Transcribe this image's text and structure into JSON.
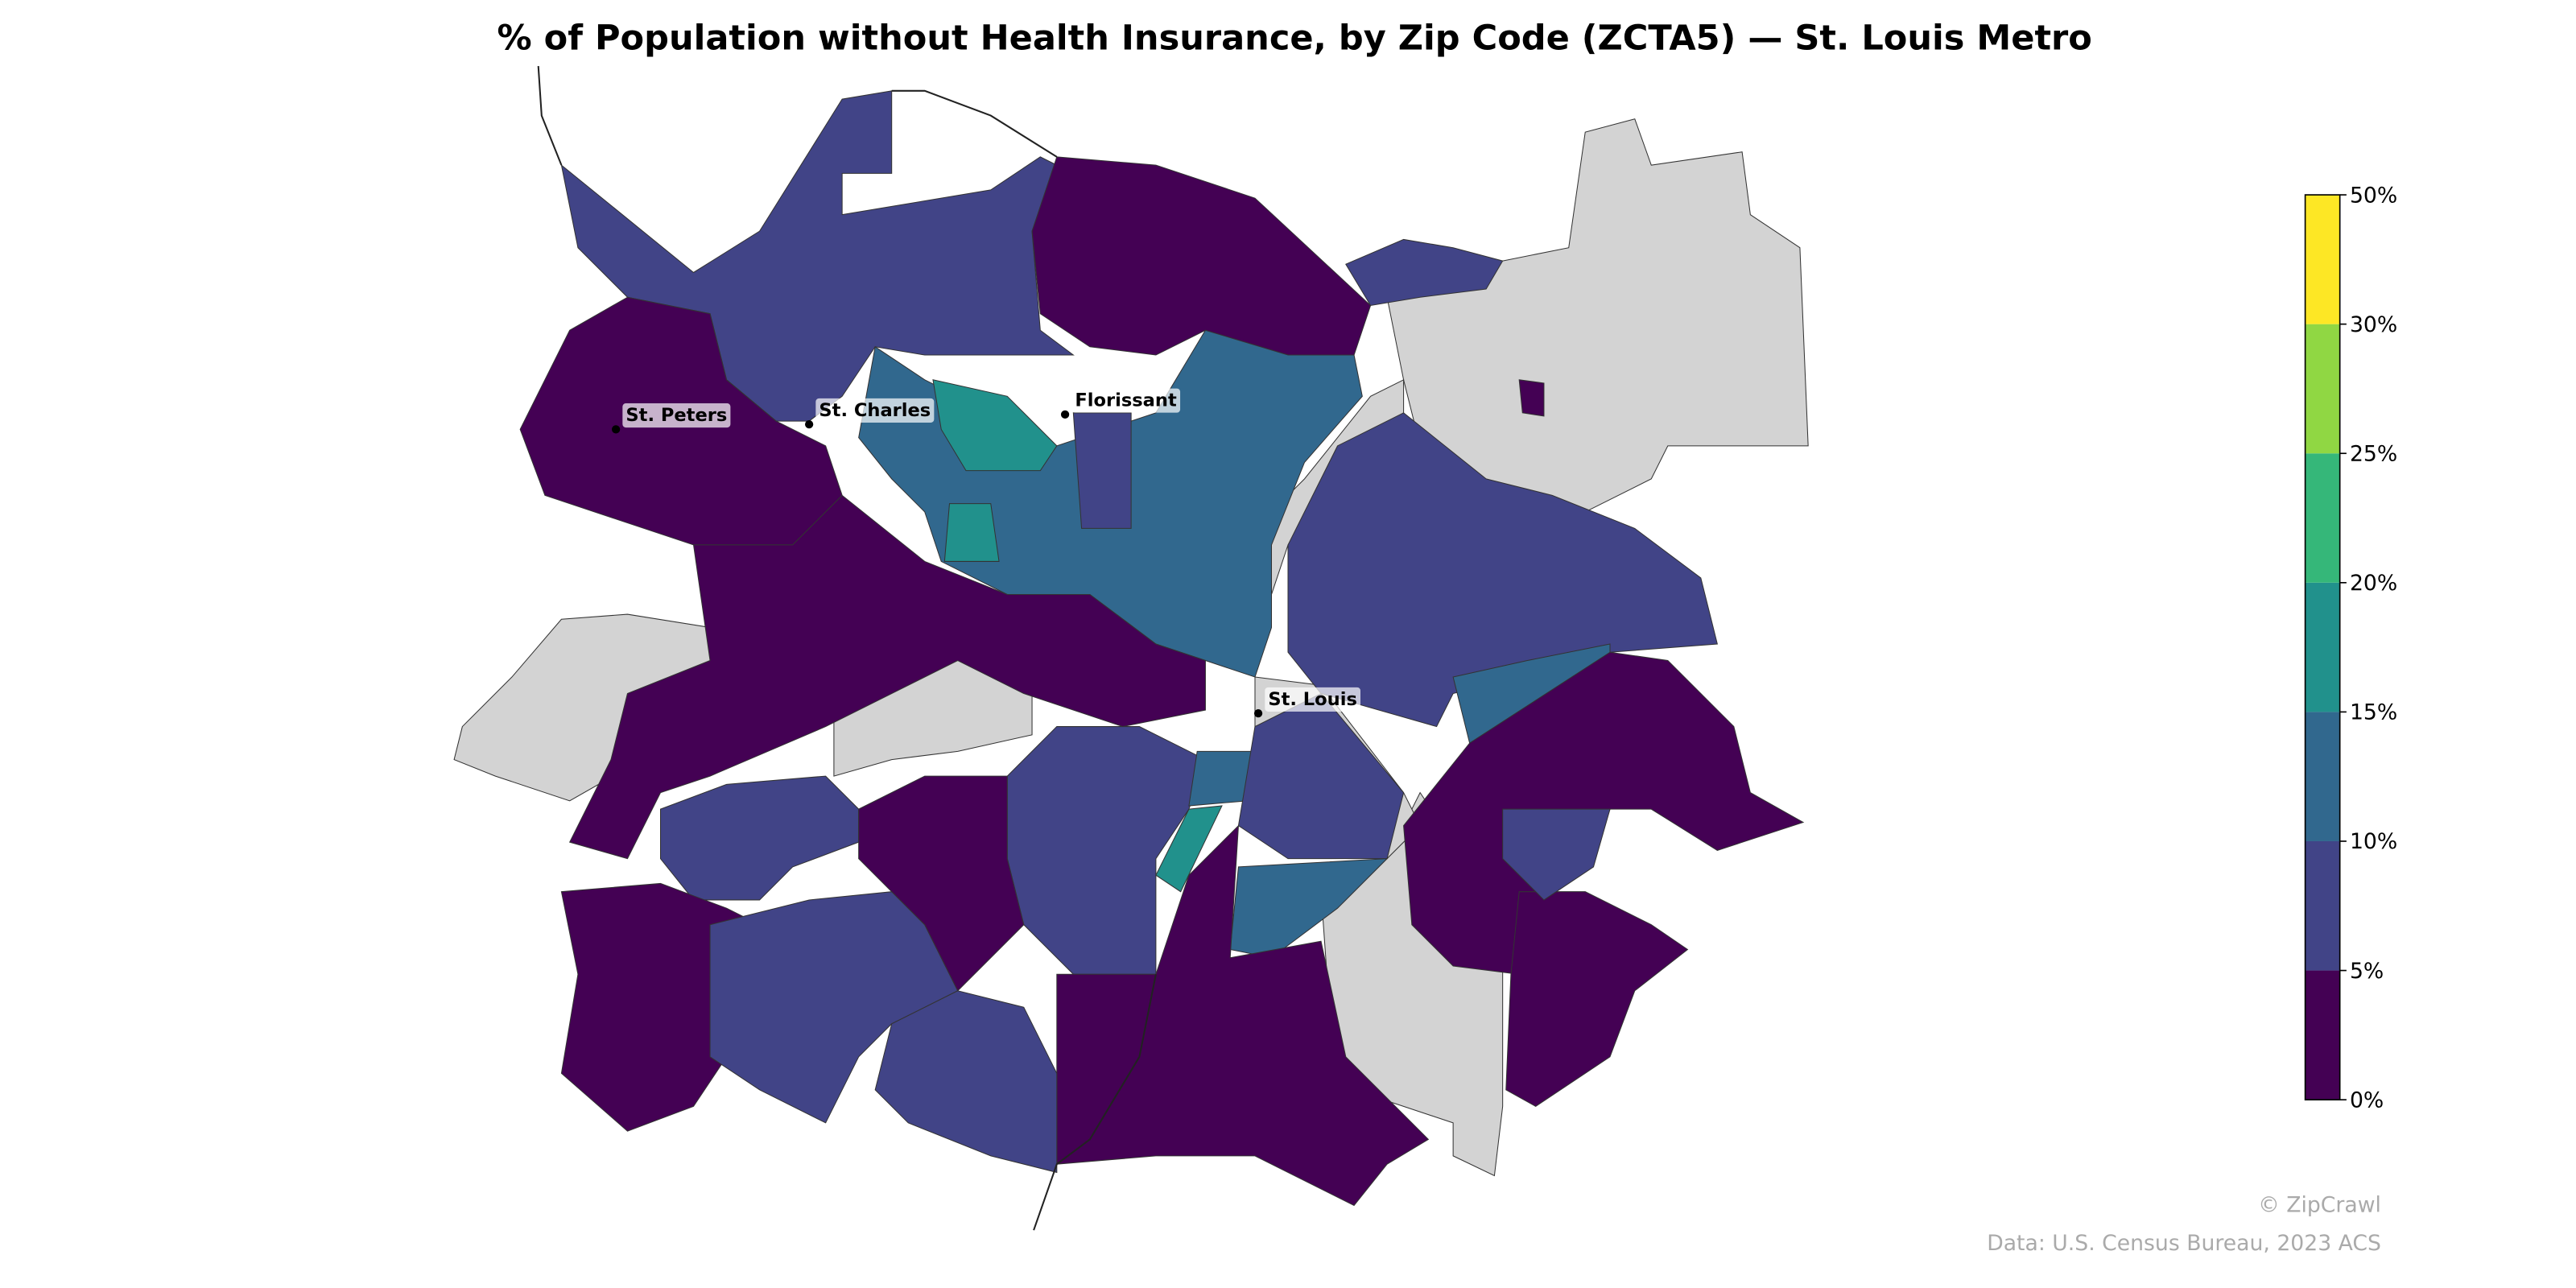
{
  "title": "% of Population without Health Insurance, by Zip Code (ZCTA5) — St. Louis Metro",
  "places": [
    "St. Peters",
    "St. Charles",
    "Florissant",
    "St. Louis"
  ],
  "regions": {
    "values": [
      null,
      null,
      null,
      null,
      null,
      null,
      null,
      null,
      7,
      3,
      3,
      12,
      17,
      17,
      7,
      3,
      7,
      17,
      12,
      7,
      12,
      3,
      7,
      3,
      7,
      7,
      3,
      7,
      12,
      3,
      3,
      7,
      7,
      3
    ],
    "no_data_color": "#d3d3d3",
    "edge_color": "#333333"
  },
  "colorbar": {
    "ticks": [
      {
        "value": 0,
        "label": "0%"
      },
      {
        "value": 5,
        "label": "5%"
      },
      {
        "value": 10,
        "label": "10%"
      },
      {
        "value": 15,
        "label": "15%"
      },
      {
        "value": 20,
        "label": "20%"
      },
      {
        "value": 25,
        "label": "25%"
      },
      {
        "value": 30,
        "label": "30%"
      },
      {
        "value": 50,
        "label": "50%"
      }
    ],
    "colors": [
      "#440154",
      "#414487",
      "#31688e",
      "#21918c",
      "#35b779",
      "#90d743",
      "#fde725"
    ]
  },
  "credit": "© ZipCrawl",
  "source": "Data: U.S. Census Bureau, 2023 ACS"
}
